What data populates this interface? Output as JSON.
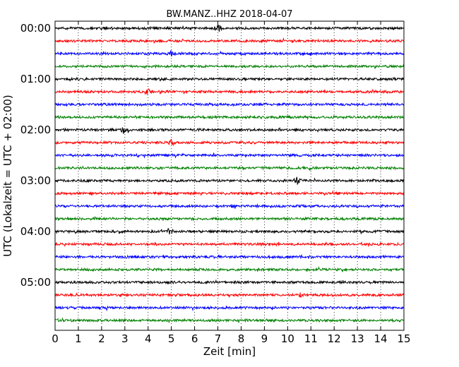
{
  "chart_data": {
    "type": "line",
    "title": "BW.MANZ..HHZ 2018-04-07",
    "xlabel": "Zeit  [min]",
    "ylabel": "UTC (Lokalzeit = UTC + 02:00)",
    "xlim": [
      0,
      15
    ],
    "x_ticks": [
      0,
      1,
      2,
      3,
      4,
      5,
      6,
      7,
      8,
      9,
      10,
      11,
      12,
      13,
      14,
      15
    ],
    "x_tick_labels": [
      "0",
      "1",
      "2",
      "3",
      "4",
      "5",
      "6",
      "7",
      "8",
      "9",
      "10",
      "11",
      "12",
      "13",
      "14",
      "15"
    ],
    "y_tick_labels": [
      "00:00",
      "01:00",
      "02:00",
      "03:00",
      "04:00",
      "05:00"
    ],
    "rows_per_hour": 4,
    "trace_count": 24,
    "trace_colors": [
      "#000000",
      "#ff0000",
      "#0000ff",
      "#008000"
    ],
    "grid": "vertical dotted at each minute",
    "bursts": [
      {
        "trace": 0,
        "minute": 7.0,
        "amp": 2.0
      },
      {
        "trace": 2,
        "minute": 5.0,
        "amp": 1.4
      },
      {
        "trace": 5,
        "minute": 4.0,
        "amp": 1.4
      },
      {
        "trace": 8,
        "minute": 3.0,
        "amp": 2.4
      },
      {
        "trace": 9,
        "minute": 5.0,
        "amp": 1.6
      },
      {
        "trace": 12,
        "minute": 10.4,
        "amp": 1.8
      },
      {
        "trace": 14,
        "minute": 7.7,
        "amp": 1.6
      },
      {
        "trace": 16,
        "minute": 4.9,
        "amp": 1.4
      },
      {
        "trace": 21,
        "minute": 10.6,
        "amp": 1.5
      }
    ]
  }
}
